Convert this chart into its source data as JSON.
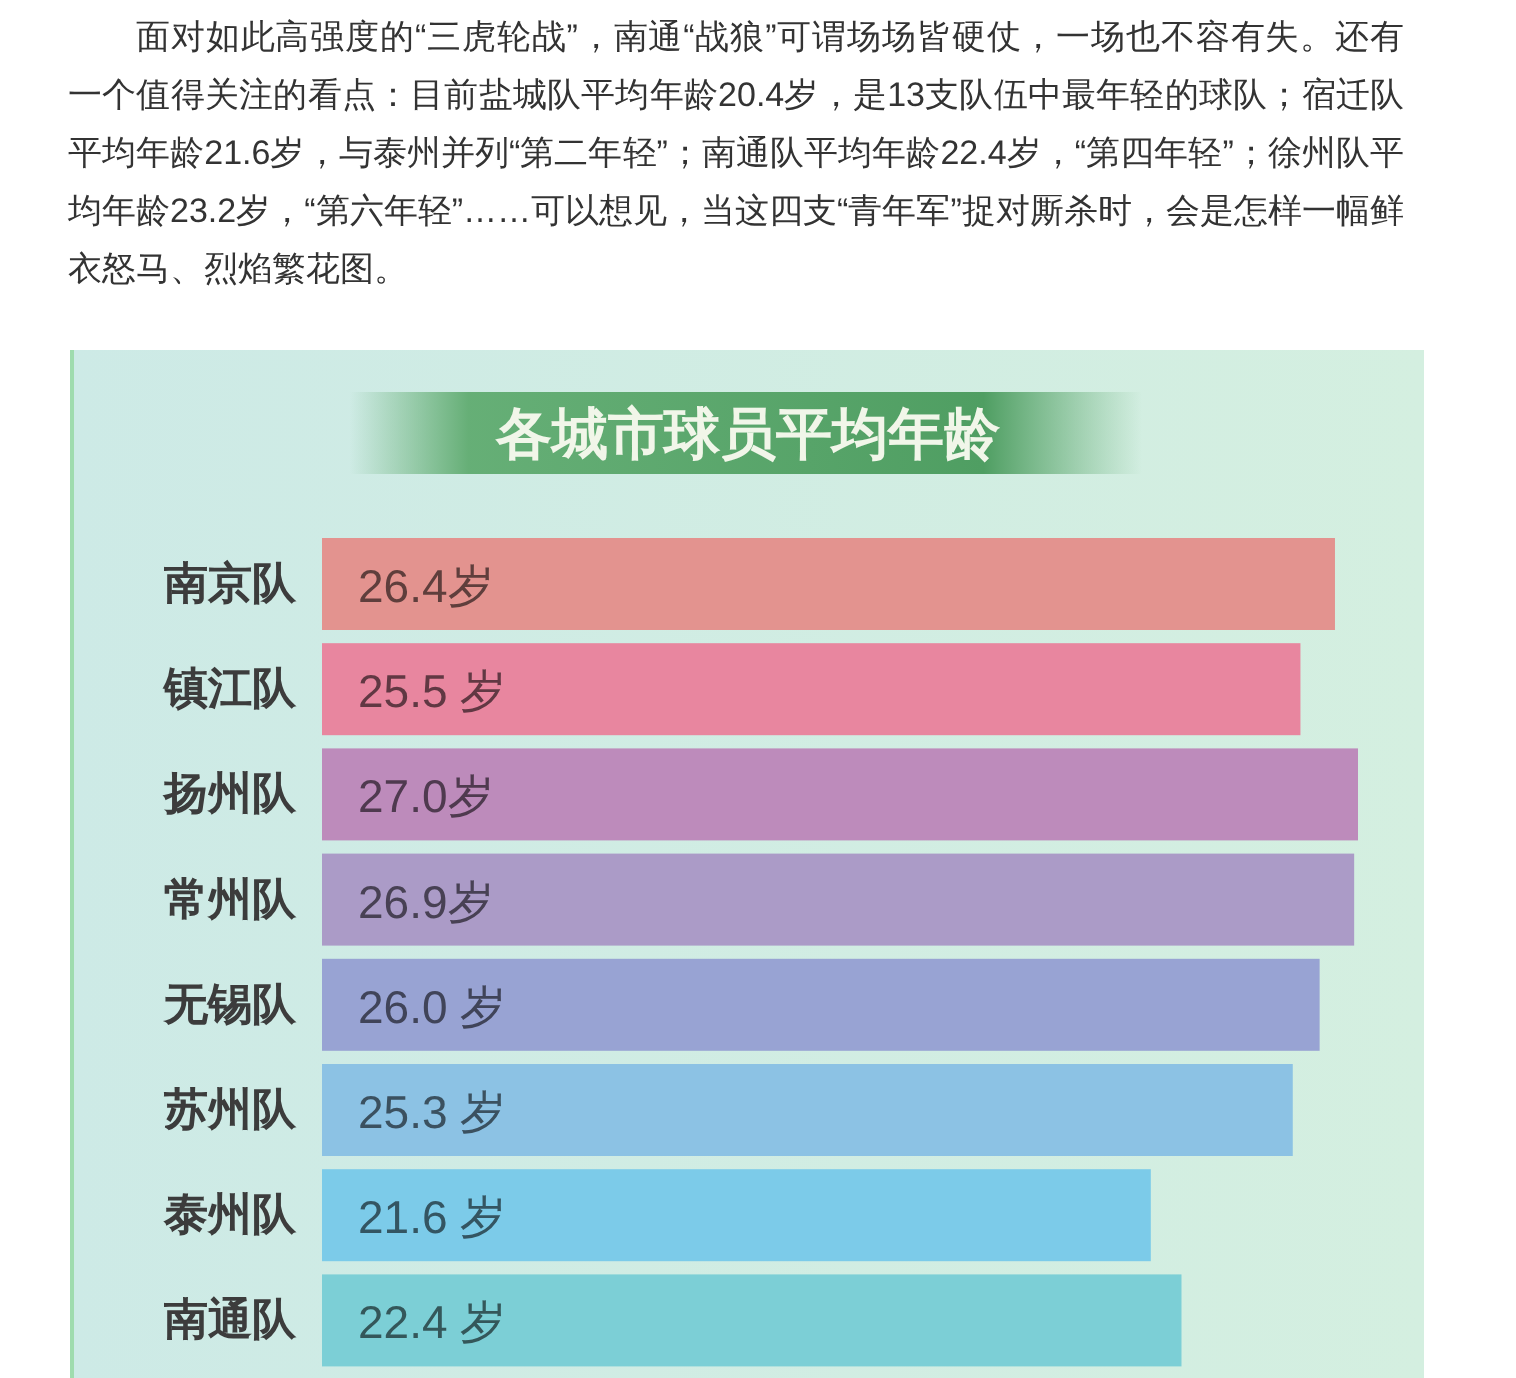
{
  "chart_data": {
    "type": "bar",
    "orientation": "horizontal",
    "title": "各城市球员平均年龄",
    "annotations": [
      "面对如此高强度的“三虎轮战”，南通“战狼”可谓场场皆硬仗，一场也不容有失。还有一个值得关注的看点：目前盐城队平均年龄20.4岁，是13支队伍中最年轻的球队；宿迁队平均年龄21.6岁，与泰州并列“第二年轻”；南通队平均年龄22.4岁，“第四年轻”；徐州队平均年龄23.2岁，“第六年轻”……可以想见，当这四支“青年军”捉对厮杀时，会是怎样一幅鲜衣怒马、烈焰繁花图。"
    ],
    "categories": [
      "南京队",
      "镇江队",
      "扬州队",
      "常州队",
      "无锡队",
      "苏州队",
      "泰州队",
      "南通队"
    ],
    "values": [
      26.4,
      25.5,
      27.0,
      26.9,
      26.0,
      25.3,
      21.6,
      22.4
    ],
    "colors": [
      "#e3938f",
      "#e8869f",
      "#bd8bbb",
      "#ab9bc7",
      "#98a3d3",
      "#8cc2e4",
      "#7ccbe9",
      "#7ccfd6"
    ],
    "value_labels": [
      "26.4岁",
      "25.5 岁",
      "27.0岁",
      "26.9岁",
      "26.0 岁",
      "25.3 岁",
      "21.6 岁",
      "22.4 岁"
    ],
    "tick_labels": "y"
  }
}
